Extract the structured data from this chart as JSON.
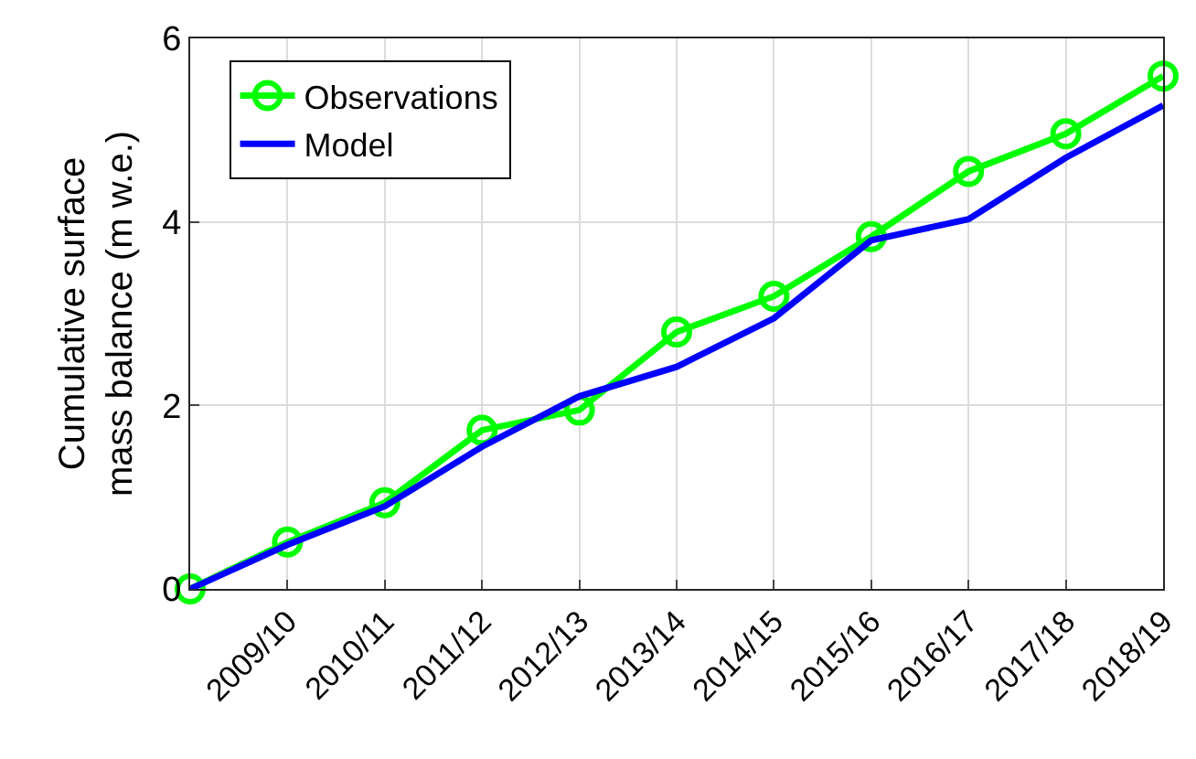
{
  "chart_data": {
    "type": "line",
    "ylabel": "Cumulative surface\nmass balance (m w.e.)",
    "categories": [
      null,
      "2009/10",
      "2010/11",
      "2011/12",
      "2012/13",
      "2013/14",
      "2014/15",
      "2015/16",
      "2016/17",
      "2017/18",
      "2018/19"
    ],
    "series": [
      {
        "name": "Observations",
        "color": "#00ff00",
        "marker": "circle",
        "values": [
          0,
          0.51,
          0.94,
          1.73,
          1.95,
          2.8,
          3.19,
          3.84,
          4.55,
          4.96,
          5.59
        ]
      },
      {
        "name": "Model",
        "color": "#0000ff",
        "marker": "none",
        "values": [
          0,
          0.48,
          0.9,
          1.55,
          2.1,
          2.42,
          2.95,
          3.8,
          4.03,
          4.7,
          5.27
        ]
      }
    ],
    "ylim": [
      0,
      6
    ],
    "yticks": [
      0,
      2,
      4,
      6
    ],
    "grid": true,
    "legend": "top left",
    "line_style": "solid"
  }
}
